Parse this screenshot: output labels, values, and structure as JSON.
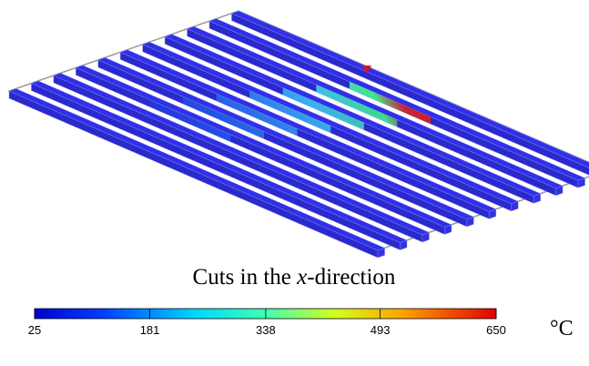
{
  "caption": {
    "before": "Cuts in the ",
    "variable": "x",
    "after": "-direction"
  },
  "colorbar": {
    "ticks": [
      25,
      181,
      338,
      493,
      650
    ],
    "unit": "°C"
  }
}
